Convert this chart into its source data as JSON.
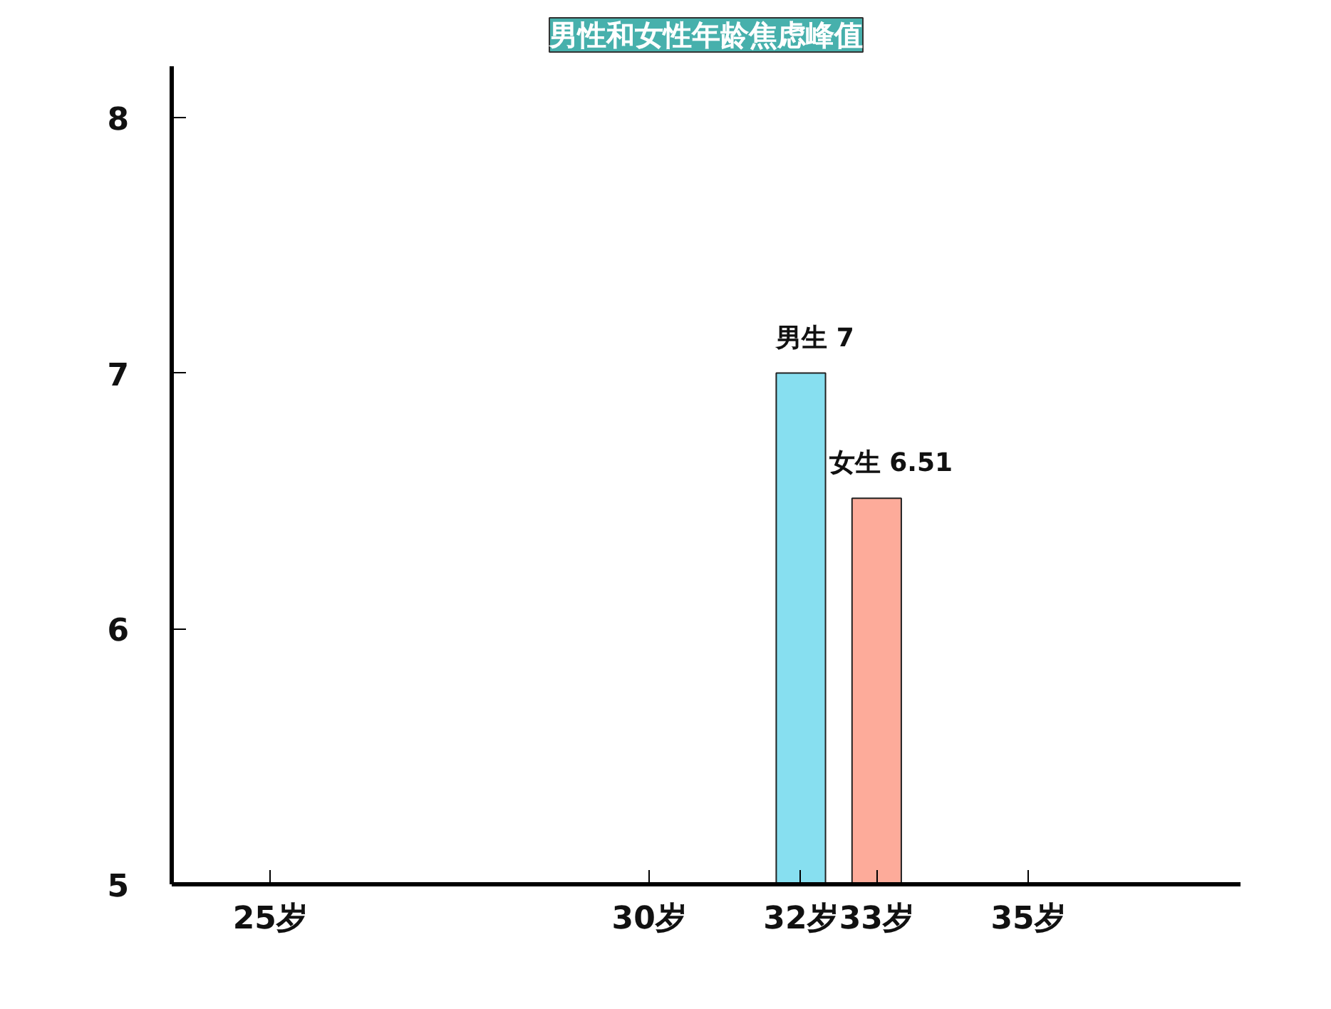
{
  "chart_data": {
    "type": "bar",
    "title": "男性和女性年龄焦虑峰值",
    "x": [
      32,
      33
    ],
    "values": [
      7,
      6.51
    ],
    "colors": [
      "#87dff0",
      "#fdab9a"
    ],
    "value_labels": [
      "男生 7",
      "女生 6.51"
    ],
    "xlim": [
      23.7,
      37.8
    ],
    "xticks": [
      {
        "value": 25,
        "label": "25岁"
      },
      {
        "value": 30,
        "label": "30岁"
      },
      {
        "value": 32,
        "label": "32岁"
      },
      {
        "value": 33,
        "label": "33岁"
      },
      {
        "value": 35,
        "label": "35岁"
      }
    ],
    "ylim": [
      5,
      8.2
    ],
    "yticks": [
      5,
      6,
      7,
      8
    ],
    "grid": false
  }
}
